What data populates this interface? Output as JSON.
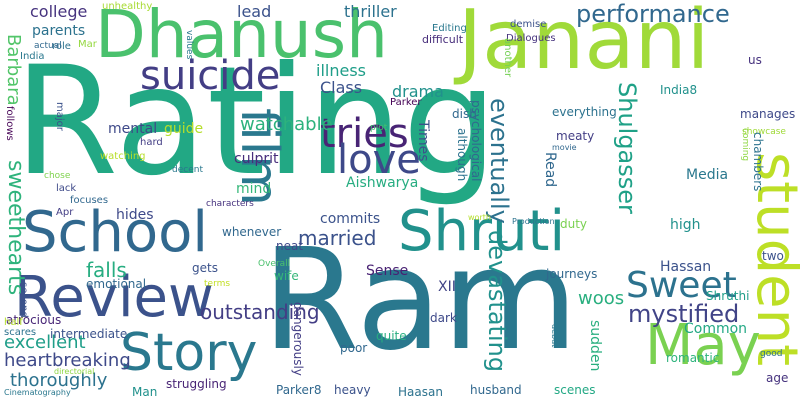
{
  "words": [
    {
      "text": "Rating",
      "color": "#22a884"
    },
    {
      "text": "Ram",
      "color": "#2a788e"
    },
    {
      "text": "Janani",
      "color": "#a0da39"
    },
    {
      "text": "Dhanush",
      "color": "#4ac16d"
    },
    {
      "text": "Review",
      "color": "#3b528b"
    },
    {
      "text": "Story",
      "color": "#2a788e"
    },
    {
      "text": "School",
      "color": "#31688e"
    },
    {
      "text": "Shruti",
      "color": "#21918c"
    },
    {
      "text": "student",
      "color": "#bddf26"
    },
    {
      "text": "May",
      "color": "#7ad151"
    },
    {
      "text": "film",
      "color": "#2a788e"
    },
    {
      "text": "suicide",
      "color": "#433e85"
    },
    {
      "text": "tries",
      "color": "#482475"
    },
    {
      "text": "love",
      "color": "#3e4989"
    },
    {
      "text": "Sweet",
      "color": "#2c728e"
    },
    {
      "text": "mystified",
      "color": "#414487"
    },
    {
      "text": "performance",
      "color": "#31688e"
    },
    {
      "text": "eventually",
      "color": "#2c728e"
    },
    {
      "text": "Shulgasser",
      "color": "#1fa187"
    },
    {
      "text": "devastating",
      "color": "#21918c"
    },
    {
      "text": "sweethearts",
      "color": "#2eb37c"
    },
    {
      "text": "married",
      "color": "#3b528b"
    },
    {
      "text": "falls",
      "color": "#27ad81"
    },
    {
      "text": "outstanding",
      "color": "#433e85"
    },
    {
      "text": "excellent",
      "color": "#1f9e89"
    },
    {
      "text": "heartbreaking",
      "color": "#3e4989"
    },
    {
      "text": "thoroughly",
      "color": "#2c728e"
    },
    {
      "text": "watchable",
      "color": "#2db27d"
    },
    {
      "text": "college",
      "color": "#46337e"
    },
    {
      "text": "lead",
      "color": "#3b528b"
    },
    {
      "text": "thriller",
      "color": "#2c728e"
    },
    {
      "text": "Barbara",
      "color": "#52c569"
    },
    {
      "text": "parents",
      "color": "#2c728e"
    },
    {
      "text": "Class",
      "color": "#3b528b"
    },
    {
      "text": "drama",
      "color": "#21918c"
    },
    {
      "text": "illness",
      "color": "#1f9e89"
    },
    {
      "text": "mental",
      "color": "#3e4989"
    },
    {
      "text": "guide",
      "color": "#b5de2b"
    },
    {
      "text": "culprit",
      "color": "#472d7b"
    },
    {
      "text": "mind",
      "color": "#35b779"
    },
    {
      "text": "Aishwarya",
      "color": "#27ad81"
    },
    {
      "text": "hides",
      "color": "#3e4989"
    },
    {
      "text": "commits",
      "color": "#3b528b"
    },
    {
      "text": "whenever",
      "color": "#31688e"
    },
    {
      "text": "Sense",
      "color": "#482173"
    },
    {
      "text": "XII",
      "color": "#414487"
    },
    {
      "text": "woos",
      "color": "#29af7f"
    },
    {
      "text": "Hassan",
      "color": "#3b528b"
    },
    {
      "text": "Media",
      "color": "#2a788e"
    },
    {
      "text": "Common",
      "color": "#22a884"
    },
    {
      "text": "high",
      "color": "#21918c"
    },
    {
      "text": "Read",
      "color": "#31688e"
    },
    {
      "text": "duty",
      "color": "#7ad151"
    },
    {
      "text": "Times",
      "color": "#3b528b"
    },
    {
      "text": "journeys",
      "color": "#31688e"
    },
    {
      "text": "Shruthi",
      "color": "#1f9e89"
    },
    {
      "text": "romantic",
      "color": "#2eb37c"
    },
    {
      "text": "age",
      "color": "#46337e"
    },
    {
      "text": "scenes",
      "color": "#22a884"
    },
    {
      "text": "husband",
      "color": "#31688e"
    },
    {
      "text": "Haasan",
      "color": "#2c728e"
    },
    {
      "text": "heavy",
      "color": "#3b528b"
    },
    {
      "text": "Parker8",
      "color": "#31688e"
    },
    {
      "text": "struggling",
      "color": "#482475"
    },
    {
      "text": "Man",
      "color": "#21918c"
    },
    {
      "text": "sudden",
      "color": "#29af7f"
    },
    {
      "text": "quite",
      "color": "#27ad81"
    },
    {
      "text": "poor",
      "color": "#31688e"
    },
    {
      "text": "dark",
      "color": "#3e4989"
    },
    {
      "text": "dangerously",
      "color": "#433e85"
    },
    {
      "text": "intermediate",
      "color": "#3b528b"
    },
    {
      "text": "atrocious",
      "color": "#482677"
    },
    {
      "text": "emotional",
      "color": "#31688e"
    },
    {
      "text": "gets",
      "color": "#3b528b"
    },
    {
      "text": "wife",
      "color": "#35b779"
    },
    {
      "text": "neat",
      "color": "#3e4989"
    },
    {
      "text": "two",
      "color": "#3b528b"
    },
    {
      "text": "although",
      "color": "#2c728e"
    },
    {
      "text": "psychological",
      "color": "#31688e"
    },
    {
      "text": "meaty",
      "color": "#433e85"
    },
    {
      "text": "manages",
      "color": "#3e4989"
    },
    {
      "text": "showcase",
      "color": "#a0da39"
    },
    {
      "text": "chambers",
      "color": "#2c728e"
    },
    {
      "text": "coming",
      "color": "#8fd744"
    },
    {
      "text": "India8",
      "color": "#21918c"
    },
    {
      "text": "everything",
      "color": "#2c728e"
    },
    {
      "text": "dish",
      "color": "#31688e"
    },
    {
      "text": "Parker",
      "color": "#440154"
    },
    {
      "text": "plot",
      "color": "#44bf70"
    },
    {
      "text": "Editing",
      "color": "#2a788e"
    },
    {
      "text": "Dialogues",
      "color": "#46337e"
    },
    {
      "text": "demise",
      "color": "#3b528b"
    },
    {
      "text": "difficult",
      "color": "#472d7b"
    },
    {
      "text": "another",
      "color": "#75d054"
    },
    {
      "text": "us",
      "color": "#46327e"
    },
    {
      "text": "unhealthy",
      "color": "#a8db34"
    },
    {
      "text": "role",
      "color": "#2c728e"
    },
    {
      "text": "Mar",
      "color": "#95d840"
    },
    {
      "text": "values",
      "color": "#2a788e"
    },
    {
      "text": "actual",
      "color": "#31688e"
    },
    {
      "text": "India",
      "color": "#2a788e"
    },
    {
      "text": "follows",
      "color": "#440154"
    },
    {
      "text": "major",
      "color": "#3b528b"
    },
    {
      "text": "watching",
      "color": "#b8de29"
    },
    {
      "text": "chose",
      "color": "#7fd34e"
    },
    {
      "text": "lack",
      "color": "#3e4989"
    },
    {
      "text": "focuses",
      "color": "#31688e"
    },
    {
      "text": "Apr",
      "color": "#433e85"
    },
    {
      "text": "hard",
      "color": "#433e85"
    },
    {
      "text": "decent",
      "color": "#2a788e"
    },
    {
      "text": "characters",
      "color": "#46327e"
    },
    {
      "text": "Overall",
      "color": "#4ac16d"
    },
    {
      "text": "terms",
      "color": "#c2df23"
    },
    {
      "text": "movie",
      "color": "#31688e"
    },
    {
      "text": "worth",
      "color": "#b5de2b"
    },
    {
      "text": "Production",
      "color": "#2c728e"
    },
    {
      "text": "good",
      "color": "#2c728e"
    },
    {
      "text": "debut",
      "color": "#2a788e"
    },
    {
      "text": "directorial",
      "color": "#8fd744"
    },
    {
      "text": "second",
      "color": "#3b528b"
    },
    {
      "text": "half",
      "color": "#b5de2b"
    },
    {
      "text": "scares",
      "color": "#2c728e"
    },
    {
      "text": "Cinematography",
      "color": "#2a788e"
    }
  ]
}
